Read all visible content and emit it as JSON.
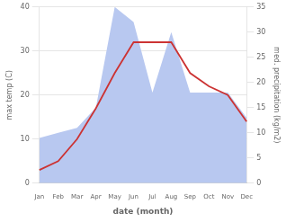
{
  "chart_data": {
    "type": "line",
    "xlabel": "date (month)",
    "ylabel": "max temp (C)",
    "y2label": "med. precipitation (kg/m2)",
    "categories": [
      "Jan",
      "Feb",
      "Mar",
      "Apr",
      "May",
      "Jun",
      "Jul",
      "Aug",
      "Sep",
      "Oct",
      "Nov",
      "Dec"
    ],
    "series": [
      {
        "type": "area",
        "color": "#b8c8f0",
        "axis": "y2",
        "values": [
          9,
          10,
          11,
          15,
          35,
          32,
          18,
          30,
          18,
          18,
          18,
          13
        ]
      },
      {
        "type": "line",
        "color": "#cc3333",
        "values": [
          3,
          5,
          10,
          17,
          25,
          32,
          32,
          32,
          25,
          22,
          20,
          14
        ]
      }
    ],
    "ylim": [
      0,
      40
    ],
    "yticks": [
      0,
      10,
      20,
      30,
      40
    ],
    "y2lim": [
      0,
      35
    ],
    "y2ticks": [
      0,
      5,
      10,
      15,
      20,
      25,
      30,
      35
    ],
    "grid": true
  }
}
